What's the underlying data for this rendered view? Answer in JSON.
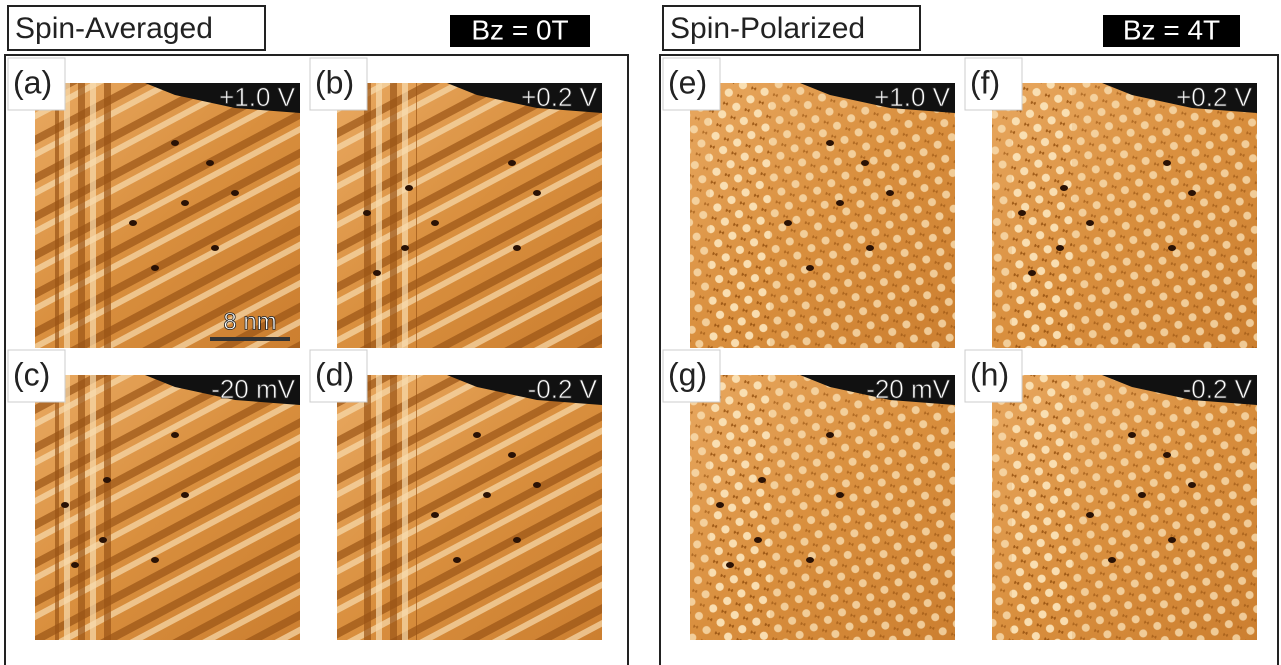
{
  "groups": [
    {
      "title": "Spin-Averaged",
      "field": "Bz = 0T",
      "panels": [
        {
          "label": "(a)",
          "bias": "+1.0 V"
        },
        {
          "label": "(b)",
          "bias": "+0.2 V"
        },
        {
          "label": "(c)",
          "bias": "-20 mV"
        },
        {
          "label": "(d)",
          "bias": "-0.2 V"
        }
      ]
    },
    {
      "title": "Spin-Polarized",
      "field": "Bz = 4T",
      "panels": [
        {
          "label": "(e)",
          "bias": "+1.0 V"
        },
        {
          "label": "(f)",
          "bias": "+0.2 V"
        },
        {
          "label": "(g)",
          "bias": "-20 mV"
        },
        {
          "label": "(h)",
          "bias": "-0.2 V"
        }
      ]
    }
  ],
  "scale_bar": "8 nm"
}
